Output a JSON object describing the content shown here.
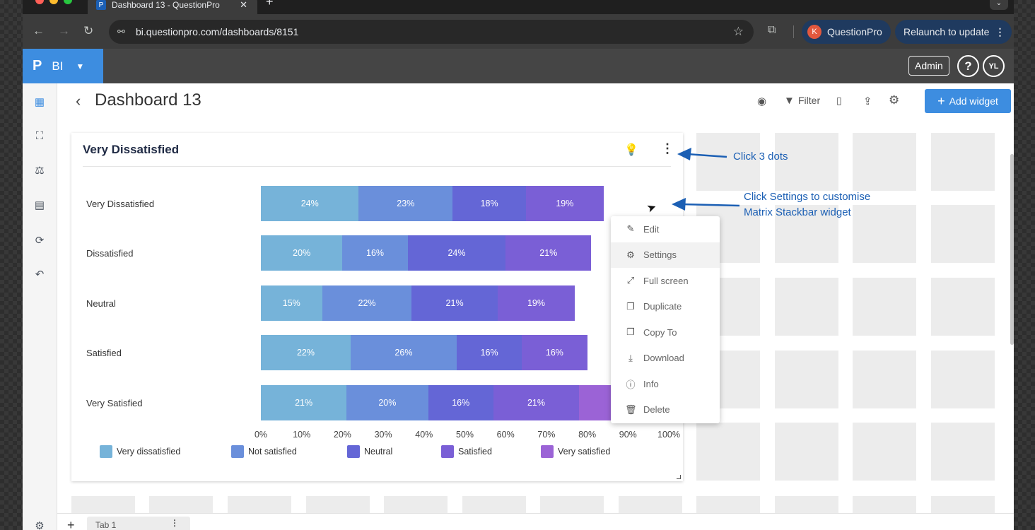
{
  "colors": {
    "very_dissatisfied": "#76b3d9",
    "not_satisfied": "#6a8fdb",
    "neutral": "#6466d6",
    "satisfied": "#7a5fd6",
    "very_satisfied": "#9b63d6",
    "accent": "#3d8de0",
    "annotation": "#1b5fb4"
  },
  "browser": {
    "tab_title": "Dashboard 13 - QuestionPro",
    "url": "bi.questionpro.com/dashboards/8151",
    "profile_name": "QuestionPro",
    "profile_initial": "K",
    "relaunch_label": "Relaunch to update"
  },
  "app": {
    "brand_logo": "P",
    "brand_label": "BI",
    "admin_label": "Admin",
    "help_label": "?",
    "user_initials": "YL"
  },
  "page": {
    "title": "Dashboard 13",
    "filter_label": "Filter",
    "add_widget_label": "Add widget"
  },
  "widget": {
    "title": "Very Dissatisfied"
  },
  "chart_data": {
    "type": "bar",
    "orientation": "horizontal",
    "stacked": true,
    "categories": [
      "Very Dissatisfied",
      "Dissatisfied",
      "Neutral",
      "Satisfied",
      "Very Satisfied"
    ],
    "series": [
      {
        "name": "Very dissatisfied",
        "values": [
          24,
          20,
          15,
          22,
          21
        ]
      },
      {
        "name": "Not satisfied",
        "values": [
          23,
          16,
          22,
          26,
          20
        ]
      },
      {
        "name": "Neutral",
        "values": [
          18,
          24,
          21,
          16,
          16
        ]
      },
      {
        "name": "Satisfied",
        "values": [
          19,
          21,
          19,
          16,
          21
        ]
      },
      {
        "name": "Very satisfied",
        "values": [
          null,
          null,
          null,
          null,
          21
        ]
      }
    ],
    "xlim": [
      0,
      100
    ],
    "x_ticks": [
      "0%",
      "10%",
      "20%",
      "30%",
      "40%",
      "50%",
      "60%",
      "70%",
      "80%",
      "90%",
      "100%"
    ],
    "legend_position": "bottom"
  },
  "menu": {
    "items": [
      {
        "label": "Edit",
        "icon": "pencil-icon"
      },
      {
        "label": "Settings",
        "icon": "gear-icon"
      },
      {
        "label": "Full screen",
        "icon": "expand-icon"
      },
      {
        "label": "Duplicate",
        "icon": "copy-icon"
      },
      {
        "label": "Copy To",
        "icon": "copy-to-icon"
      },
      {
        "label": "Download",
        "icon": "download-icon"
      },
      {
        "label": "Info",
        "icon": "info-icon"
      },
      {
        "label": "Delete",
        "icon": "trash-icon"
      }
    ]
  },
  "annotations": {
    "dots": "Click 3 dots",
    "settings_line1": "Click Settings to customise",
    "settings_line2": "Matrix Stackbar widget"
  },
  "tabs": {
    "tab1_label": "Tab 1"
  }
}
